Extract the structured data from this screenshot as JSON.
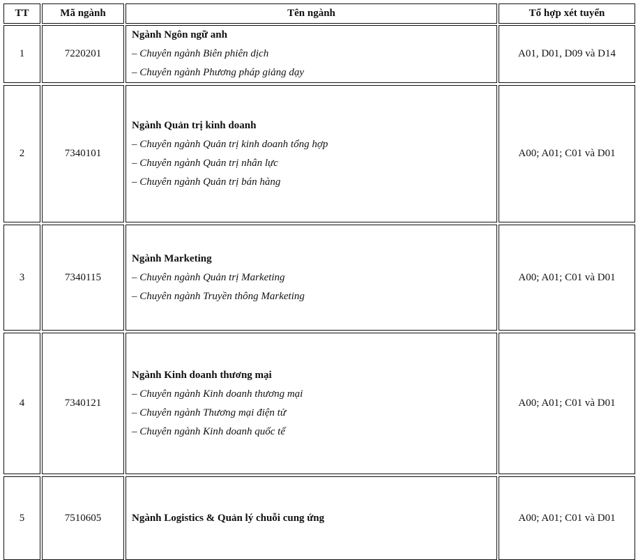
{
  "headers": {
    "tt": "TT",
    "code": "Mã ngành",
    "name": "Tên ngành",
    "combo": "Tổ hợp xét tuyển"
  },
  "rows": [
    {
      "tt": "1",
      "code": "7220201",
      "major": "Ngành Ngôn ngữ anh",
      "specs": [
        "– Chuyên ngành Biên phiên dịch",
        "– Chuyên ngành Phương pháp giảng dạy"
      ],
      "combo": "A01, D01, D09 và D14"
    },
    {
      "tt": "2",
      "code": "7340101",
      "major": "Ngành Quản trị kinh doanh",
      "specs": [
        "– Chuyên ngành Quản trị kinh doanh tổng hợp",
        "– Chuyên ngành Quản trị nhân lực",
        "– Chuyên ngành Quản trị bán hàng"
      ],
      "combo": "A00; A01; C01 và D01"
    },
    {
      "tt": "3",
      "code": "7340115",
      "major": "Ngành Marketing",
      "specs": [
        "– Chuyên ngành Quản trị Marketing",
        "– Chuyên ngành Truyền thông Marketing"
      ],
      "combo": "A00; A01; C01 và D01"
    },
    {
      "tt": "4",
      "code": "7340121",
      "major": "Ngành Kinh doanh thương mại",
      "specs": [
        "– Chuyên ngành Kinh doanh thương mại",
        "– Chuyên ngành Thương mại điện tử",
        "– Chuyên ngành Kinh doanh quốc tế"
      ],
      "combo": "A00; A01; C01 và D01"
    },
    {
      "tt": "5",
      "code": "7510605",
      "major": "Ngành Logistics & Quản lý chuỗi cung ứng",
      "specs": [],
      "combo": "A00; A01; C01 và D01"
    }
  ]
}
